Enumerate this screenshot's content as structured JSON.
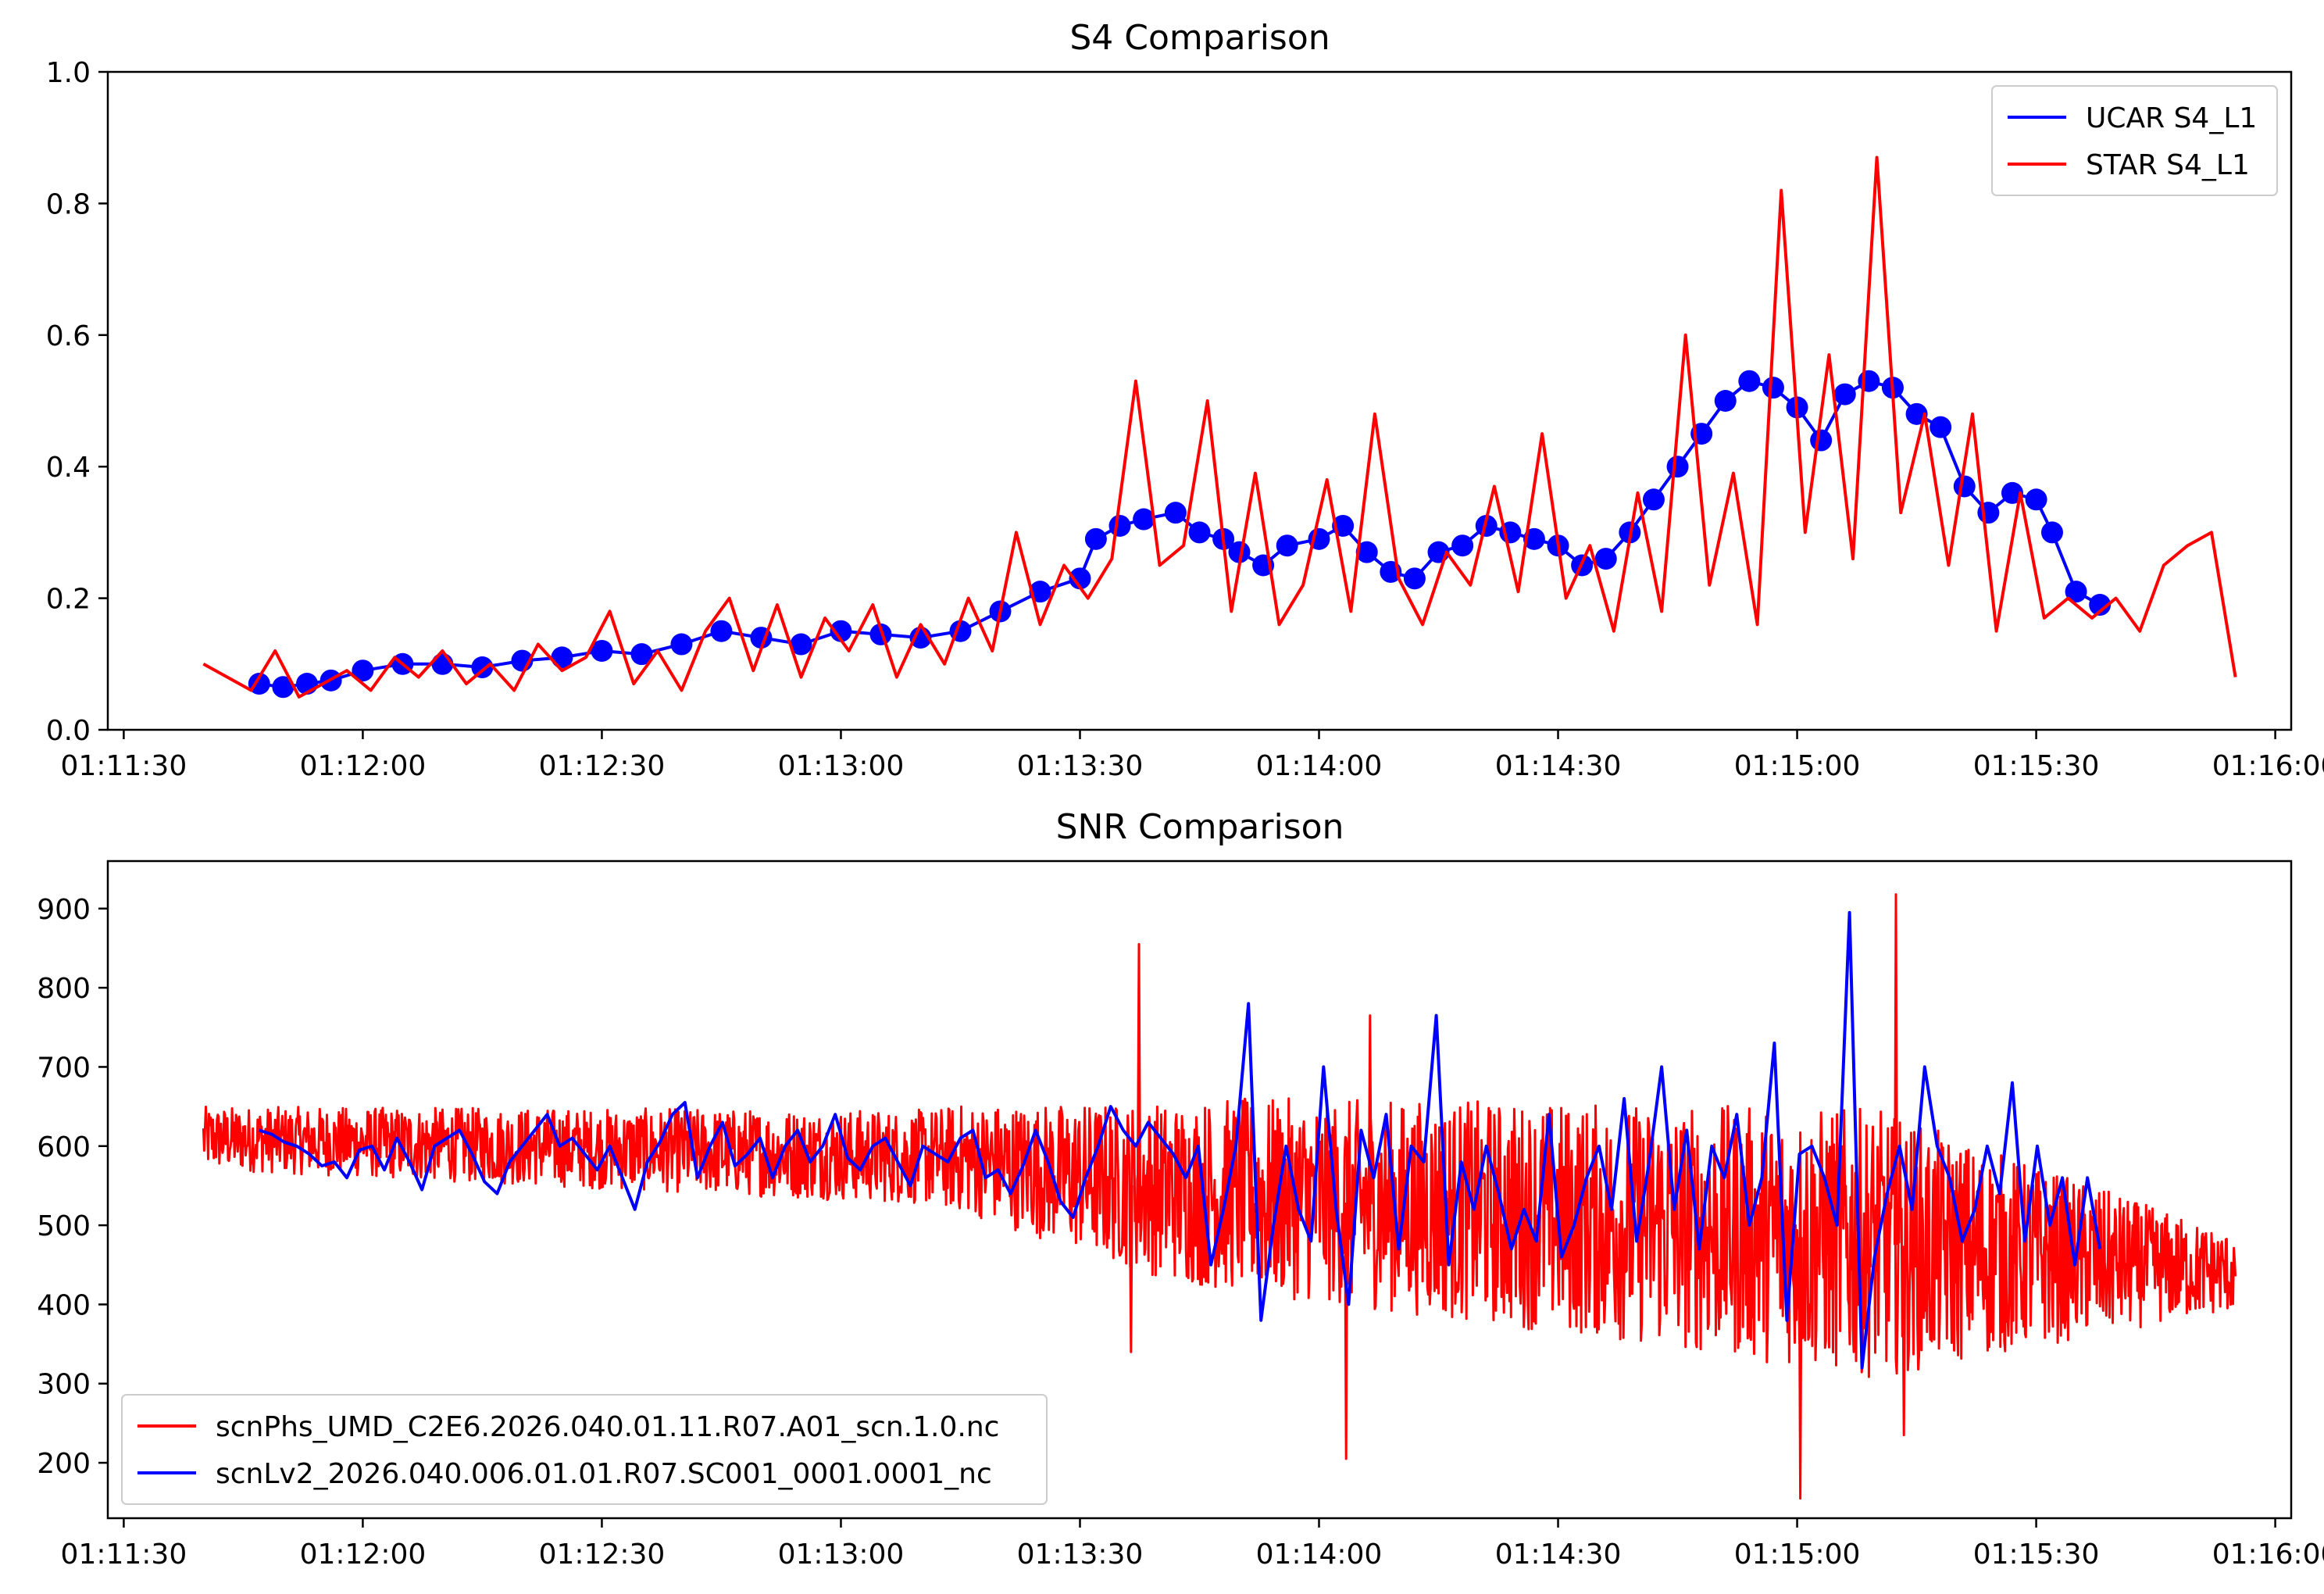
{
  "chart_data": [
    {
      "type": "line",
      "title": "S4 Comparison",
      "xlabel": "",
      "ylabel": "",
      "x_range": [
        "01:11:28",
        "01:16:02"
      ],
      "ylim": [
        0.0,
        1.0
      ],
      "x_ticks": [
        "01:11:30",
        "01:12:00",
        "01:12:30",
        "01:13:00",
        "01:13:30",
        "01:14:00",
        "01:14:30",
        "01:15:00",
        "01:15:30",
        "01:16:00"
      ],
      "y_ticks": [
        "0.0",
        "0.2",
        "0.4",
        "0.6",
        "0.8",
        "1.0"
      ],
      "grid": false,
      "legend_position": "top-right",
      "series": [
        {
          "name": "UCAR S4_L1",
          "color": "#0000ff",
          "marker": "circle",
          "x": [
            "01:11:47",
            "01:11:50",
            "01:11:53",
            "01:11:56",
            "01:12:00",
            "01:12:05",
            "01:12:10",
            "01:12:15",
            "01:12:20",
            "01:12:25",
            "01:12:30",
            "01:12:35",
            "01:12:40",
            "01:12:45",
            "01:12:50",
            "01:12:55",
            "01:13:00",
            "01:13:05",
            "01:13:10",
            "01:13:15",
            "01:13:20",
            "01:13:25",
            "01:13:30",
            "01:13:32",
            "01:13:35",
            "01:13:38",
            "01:13:42",
            "01:13:45",
            "01:13:48",
            "01:13:50",
            "01:13:53",
            "01:13:56",
            "01:14:00",
            "01:14:03",
            "01:14:06",
            "01:14:09",
            "01:14:12",
            "01:14:15",
            "01:14:18",
            "01:14:21",
            "01:14:24",
            "01:14:27",
            "01:14:30",
            "01:14:33",
            "01:14:36",
            "01:14:39",
            "01:14:42",
            "01:14:45",
            "01:14:48",
            "01:14:51",
            "01:14:54",
            "01:14:57",
            "01:15:00",
            "01:15:03",
            "01:15:06",
            "01:15:09",
            "01:15:12",
            "01:15:15",
            "01:15:18",
            "01:15:21",
            "01:15:24",
            "01:15:27",
            "01:15:30",
            "01:15:32",
            "01:15:35",
            "01:15:38"
          ],
          "y": [
            0.07,
            0.065,
            0.07,
            0.075,
            0.09,
            0.1,
            0.1,
            0.095,
            0.105,
            0.11,
            0.12,
            0.115,
            0.13,
            0.15,
            0.14,
            0.13,
            0.15,
            0.145,
            0.14,
            0.15,
            0.18,
            0.21,
            0.23,
            0.29,
            0.31,
            0.32,
            0.33,
            0.3,
            0.29,
            0.27,
            0.25,
            0.28,
            0.29,
            0.31,
            0.27,
            0.24,
            0.23,
            0.27,
            0.28,
            0.31,
            0.3,
            0.29,
            0.28,
            0.25,
            0.26,
            0.3,
            0.35,
            0.4,
            0.45,
            0.5,
            0.53,
            0.52,
            0.49,
            0.44,
            0.51,
            0.53,
            0.52,
            0.48,
            0.46,
            0.37,
            0.33,
            0.36,
            0.35,
            0.3,
            0.21,
            0.19
          ]
        },
        {
          "name": "STAR S4_L1",
          "color": "#ff0000",
          "x": [
            "01:11:40",
            "01:11:43",
            "01:11:46",
            "01:11:49",
            "01:11:52",
            "01:11:55",
            "01:11:58",
            "01:12:01",
            "01:12:04",
            "01:12:07",
            "01:12:10",
            "01:12:13",
            "01:12:16",
            "01:12:19",
            "01:12:22",
            "01:12:25",
            "01:12:28",
            "01:12:31",
            "01:12:34",
            "01:12:37",
            "01:12:40",
            "01:12:43",
            "01:12:46",
            "01:12:49",
            "01:12:52",
            "01:12:55",
            "01:12:58",
            "01:13:01",
            "01:13:04",
            "01:13:07",
            "01:13:10",
            "01:13:13",
            "01:13:16",
            "01:13:19",
            "01:13:22",
            "01:13:25",
            "01:13:28",
            "01:13:31",
            "01:13:34",
            "01:13:37",
            "01:13:40",
            "01:13:43",
            "01:13:46",
            "01:13:49",
            "01:13:52",
            "01:13:55",
            "01:13:58",
            "01:14:01",
            "01:14:04",
            "01:14:07",
            "01:14:10",
            "01:14:13",
            "01:14:16",
            "01:14:19",
            "01:14:22",
            "01:14:25",
            "01:14:28",
            "01:14:31",
            "01:14:34",
            "01:14:37",
            "01:14:40",
            "01:14:43",
            "01:14:46",
            "01:14:49",
            "01:14:52",
            "01:14:55",
            "01:14:58",
            "01:15:01",
            "01:15:04",
            "01:15:07",
            "01:15:10",
            "01:15:13",
            "01:15:16",
            "01:15:19",
            "01:15:22",
            "01:15:25",
            "01:15:28",
            "01:15:31",
            "01:15:34",
            "01:15:37",
            "01:15:40",
            "01:15:43",
            "01:15:46",
            "01:15:49",
            "01:15:52",
            "01:15:55"
          ],
          "y": [
            0.1,
            0.08,
            0.06,
            0.12,
            0.05,
            0.07,
            0.09,
            0.06,
            0.11,
            0.08,
            0.12,
            0.07,
            0.1,
            0.06,
            0.13,
            0.09,
            0.11,
            0.18,
            0.07,
            0.12,
            0.06,
            0.15,
            0.2,
            0.09,
            0.19,
            0.08,
            0.17,
            0.12,
            0.19,
            0.08,
            0.16,
            0.1,
            0.2,
            0.12,
            0.3,
            0.16,
            0.25,
            0.2,
            0.26,
            0.53,
            0.25,
            0.28,
            0.5,
            0.18,
            0.39,
            0.16,
            0.22,
            0.38,
            0.18,
            0.48,
            0.23,
            0.16,
            0.27,
            0.22,
            0.37,
            0.21,
            0.45,
            0.2,
            0.28,
            0.15,
            0.36,
            0.18,
            0.6,
            0.22,
            0.39,
            0.16,
            0.82,
            0.3,
            0.57,
            0.26,
            0.87,
            0.33,
            0.48,
            0.25,
            0.48,
            0.15,
            0.36,
            0.17,
            0.2,
            0.17,
            0.2,
            0.15,
            0.25,
            0.28,
            0.3,
            0.08
          ]
        }
      ]
    },
    {
      "type": "line",
      "title": "SNR Comparison",
      "xlabel": "",
      "ylabel": "",
      "x_range": [
        "01:11:28",
        "01:16:02"
      ],
      "ylim": [
        130,
        960
      ],
      "x_ticks": [
        "01:11:30",
        "01:12:00",
        "01:12:30",
        "01:13:00",
        "01:13:30",
        "01:14:00",
        "01:14:30",
        "01:15:00",
        "01:15:30",
        "01:16:00"
      ],
      "y_ticks": [
        "200",
        "300",
        "400",
        "500",
        "600",
        "700",
        "800",
        "900"
      ],
      "grid": false,
      "legend_position": "bottom-left",
      "series": [
        {
          "name": "scnPhs_UMD_C2E6.2026.040.01.11.R07.A01_scn.1.0.nc",
          "color": "#ff0000",
          "x_start": "01:11:40",
          "x_end": "01:15:55",
          "trend": [
            [
              0,
              610
            ],
            [
              95,
              585
            ],
            [
              120,
              545
            ],
            [
              170,
              510
            ],
            [
              255,
              440
            ]
          ],
          "amplitude": [
            [
              0,
              40
            ],
            [
              90,
              60
            ],
            [
              125,
              120
            ],
            [
              210,
              170
            ],
            [
              250,
              60
            ],
            [
              255,
              50
            ]
          ],
          "spikes": [
            {
              "x": "01:13:37",
              "y": 855
            },
            {
              "x": "01:13:36",
              "y": 340
            },
            {
              "x": "01:14:03",
              "y": 205
            },
            {
              "x": "01:14:06",
              "y": 765
            },
            {
              "x": "01:15:00",
              "y": 155
            },
            {
              "x": "01:15:12",
              "y": 918
            },
            {
              "x": "01:15:13",
              "y": 235
            }
          ]
        },
        {
          "name": "scnLv2_2026.040.006.01.01.R07.SC001_0001.0001_nc",
          "color": "#0000ff",
          "x_start": "01:11:47",
          "x_end": "01:15:38",
          "y": [
            620,
            615,
            605,
            600,
            590,
            575,
            580,
            560,
            595,
            600,
            570,
            610,
            580,
            545,
            600,
            610,
            620,
            590,
            555,
            540,
            580,
            600,
            620,
            640,
            600,
            610,
            590,
            570,
            600,
            560,
            520,
            580,
            605,
            640,
            655,
            560,
            600,
            630,
            575,
            590,
            610,
            560,
            600,
            620,
            580,
            600,
            640,
            585,
            570,
            600,
            610,
            580,
            550,
            600,
            590,
            580,
            610,
            620,
            560,
            570,
            540,
            575,
            620,
            580,
            530,
            510,
            560,
            600,
            650,
            620,
            600,
            630,
            610,
            590,
            560,
            600,
            450,
            520,
            600,
            780,
            380,
            500,
            600,
            520,
            480,
            700,
            520,
            400,
            620,
            560,
            640,
            470,
            600,
            580,
            765,
            450,
            580,
            520,
            600,
            540,
            470,
            520,
            480,
            640,
            460,
            500,
            560,
            600,
            520,
            660,
            480,
            580,
            700,
            520,
            620,
            470,
            600,
            560,
            640,
            500,
            560,
            730,
            380,
            590,
            600,
            560,
            500,
            895,
            320,
            460,
            540,
            600,
            520,
            700,
            600,
            560,
            480,
            520,
            600,
            540,
            680,
            480,
            600,
            500,
            560,
            450,
            560,
            470
          ]
        }
      ]
    }
  ]
}
